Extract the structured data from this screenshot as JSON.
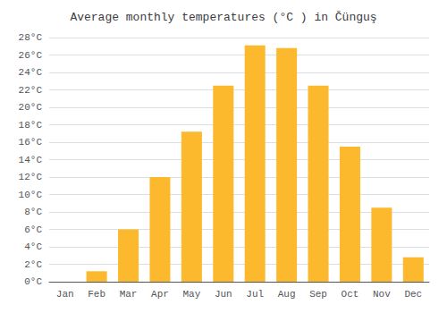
{
  "chart_data": {
    "type": "bar",
    "title": "Average monthly temperatures (°C ) in Čünguş",
    "categories": [
      "Jan",
      "Feb",
      "Mar",
      "Apr",
      "May",
      "Jun",
      "Jul",
      "Aug",
      "Sep",
      "Oct",
      "Nov",
      "Dec"
    ],
    "values": [
      0.0,
      1.2,
      6.0,
      12.0,
      17.2,
      22.5,
      27.1,
      26.8,
      22.5,
      15.5,
      8.5,
      2.8
    ],
    "color": "#FDB92E",
    "ylim": [
      0,
      28
    ],
    "yticks": [
      {
        "value": 0,
        "label": "0°C"
      },
      {
        "value": 2,
        "label": "2°C"
      },
      {
        "value": 4,
        "label": "4°C"
      },
      {
        "value": 6,
        "label": "6°C"
      },
      {
        "value": 8,
        "label": "8°C"
      },
      {
        "value": 10,
        "label": "10°C"
      },
      {
        "value": 12,
        "label": "12°C"
      },
      {
        "value": 14,
        "label": "14°C"
      },
      {
        "value": 16,
        "label": "16°C"
      },
      {
        "value": 18,
        "label": "18°C"
      },
      {
        "value": 20,
        "label": "20°C"
      },
      {
        "value": 22,
        "label": "22°C"
      },
      {
        "value": 24,
        "label": "24°C"
      },
      {
        "value": 26,
        "label": "26°C"
      },
      {
        "value": 28,
        "label": "28°C"
      }
    ],
    "grid": true
  }
}
